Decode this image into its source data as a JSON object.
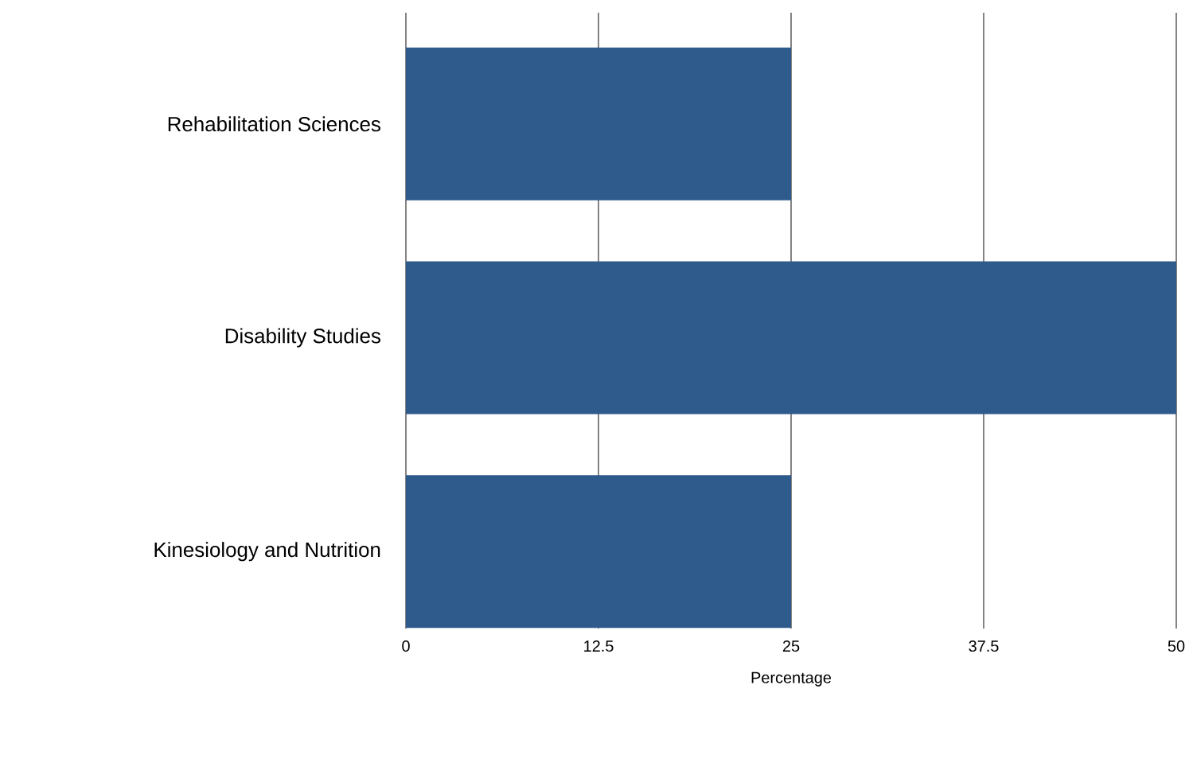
{
  "chart_data": {
    "type": "bar",
    "orientation": "horizontal",
    "xlabel": "Percentage",
    "categories": [
      "Rehabilitation Sciences",
      "Disability Studies",
      "Kinesiology and Nutrition"
    ],
    "values": [
      25,
      50,
      25
    ],
    "color": "#2e5a8c",
    "xlim": [
      0,
      50
    ],
    "xticks": [
      0,
      12.5,
      25,
      37.5,
      50
    ],
    "grid": "x"
  }
}
